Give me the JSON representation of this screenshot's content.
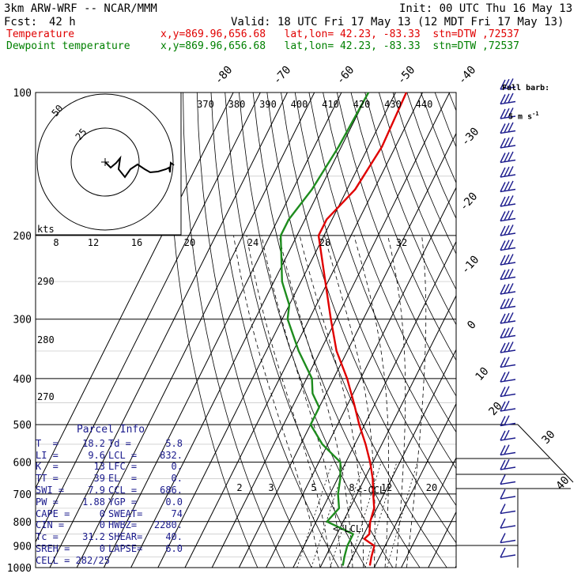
{
  "header": {
    "model": "3km ARW-WRF -- NCAR/MMM",
    "init": "Init: 00 UTC Thu 16 May 13",
    "fcst_label": "Fcst:",
    "fcst_value": "42 h",
    "valid": "Valid: 18 UTC Fri 17 May 13 (12 MDT Fri 17 May 13)",
    "temp_label": "Temperature",
    "dewp_label": "Dewpoint temperature",
    "temp_info": "x,y=869.96,656.68   lat,lon= 42.23, -83.33  stn=DTW ,72537",
    "dewp_info": "x,y=869.96,656.68   lat,lon= 42.23, -83.33  stn=DTW ,72537"
  },
  "barb_legend": {
    "line1": "Full barb:",
    "line2": "5 m s",
    "sup": "-1"
  },
  "hodograph": {
    "ring_labels": [
      "50",
      "25"
    ],
    "kts_label": "kts"
  },
  "annotations": {
    "ccl": "<-CCL",
    "lcl": "<-LCL"
  },
  "parcel_info": {
    "title": "Parcel Info",
    "rows": [
      [
        "T  =",
        "18.2",
        "Td =",
        "5.8"
      ],
      [
        "LI =",
        "9.6",
        "LCL =",
        "832."
      ],
      [
        "K  =",
        "13",
        "LFC =",
        "0."
      ],
      [
        "TT =",
        "39",
        "EL  =",
        "0."
      ],
      [
        "SWI =",
        "7.9",
        "CCL =",
        "686."
      ],
      [
        "PW =",
        "1.88",
        "YGP =",
        "0.0"
      ],
      [
        "CAPE =",
        "0",
        "SWEAT=",
        "74"
      ],
      [
        "CIN =",
        "0",
        "HWBZ=",
        "2280."
      ],
      [
        "Tc =",
        "31.2",
        "SHEAR=",
        "40."
      ],
      [
        "SREH =",
        "0",
        "LAPSE=",
        "6.0"
      ]
    ],
    "cell": "CELL = 282/25"
  },
  "colors": {
    "temperature": "#e00000",
    "dewpoint": "#1e8c1e",
    "barbs": "#1a1a8c",
    "grid": "#000000"
  },
  "chart_data": {
    "type": "line",
    "pressure_levels": [
      "100",
      "200",
      "300",
      "400",
      "500",
      "600",
      "700",
      "800",
      "900",
      "1000"
    ],
    "isotherm_labels": [
      "-80",
      "-70",
      "-60",
      "-50",
      "-40",
      "-30",
      "-20",
      "-10",
      "0",
      "10",
      "20",
      "30",
      "40"
    ],
    "theta_labels": [
      "370",
      "380",
      "390",
      "400",
      "410",
      "420",
      "430",
      "440"
    ],
    "dry_adiabat_labels": [
      "290",
      "280",
      "270"
    ],
    "mixing_ratio_labels": [
      "2",
      "3",
      "5",
      "8",
      "12",
      "20"
    ],
    "hodo_speed_labels": [
      "8",
      "12",
      "16",
      "20",
      "24",
      "28",
      "32"
    ],
    "series": [
      {
        "name": "Temperature",
        "pressure": [
          100,
          130,
          160,
          185,
          200,
          250,
          300,
          350,
          400,
          450,
          500,
          550,
          600,
          650,
          700,
          750,
          800,
          850,
          870,
          900,
          950,
          990
        ],
        "temp": [
          -56,
          -55,
          -57,
          -62,
          -62,
          -51,
          -42,
          -34,
          -25,
          -18,
          -12,
          -6,
          -1,
          3,
          6,
          9,
          10,
          12,
          11,
          16,
          17,
          18
        ]
      },
      {
        "name": "Dewpoint temperature",
        "pressure": [
          100,
          130,
          160,
          185,
          200,
          250,
          280,
          300,
          350,
          400,
          430,
          460,
          500,
          550,
          600,
          650,
          700,
          750,
          800,
          850,
          880,
          900,
          950,
          990
        ],
        "dewp": [
          -70,
          -71,
          -73,
          -76,
          -76,
          -67,
          -60,
          -58,
          -48,
          -38,
          -35,
          -30,
          -30,
          -22,
          -12,
          -9,
          -7,
          -4,
          -6,
          6,
          6,
          6,
          7,
          8
        ]
      }
    ]
  }
}
